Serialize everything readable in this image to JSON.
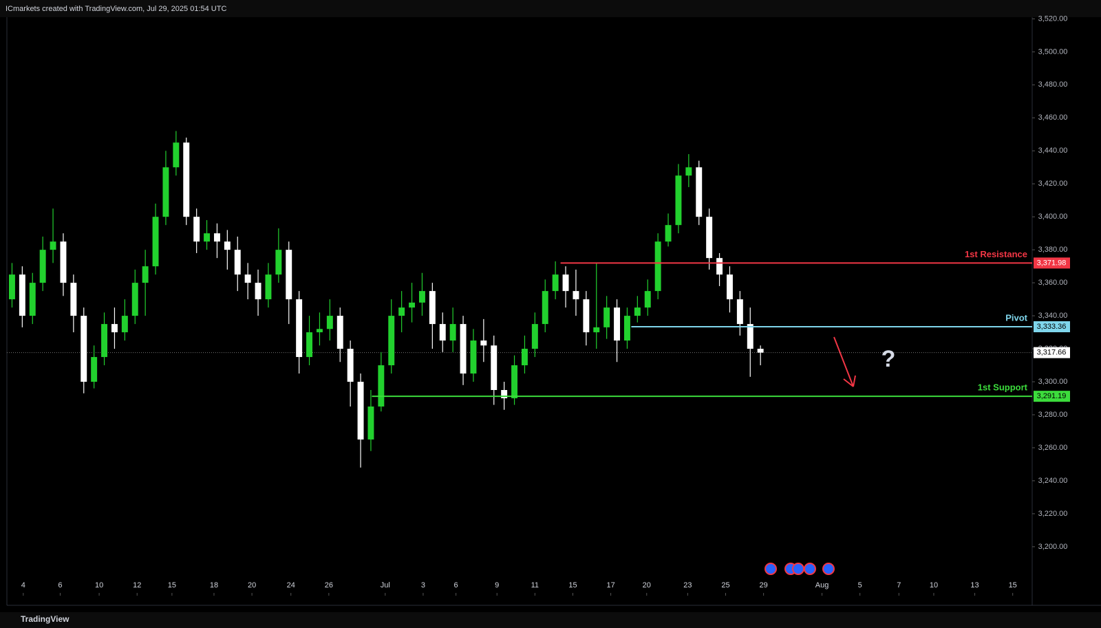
{
  "header": "ICmarkets created with TradingView.com, Jul 29, 2025 01:54 UTC",
  "footer": "TradingView",
  "chart_data": {
    "type": "candlestick",
    "up_color": "#22d12e",
    "down_color": "#ffffff",
    "x": [
      0,
      1,
      2,
      3,
      4,
      5,
      6,
      7,
      8,
      9,
      10,
      11,
      12,
      13,
      14,
      15,
      16,
      17,
      18,
      19,
      20,
      21,
      22,
      23,
      24,
      25,
      26,
      27,
      28,
      29,
      30,
      31,
      32,
      33,
      34,
      35,
      36,
      37,
      38,
      39,
      40,
      41,
      42,
      43,
      44,
      45,
      46,
      47,
      48,
      49,
      50,
      51,
      52,
      53,
      54,
      55,
      56,
      57,
      58,
      59,
      60,
      61,
      62,
      63,
      64,
      65,
      66,
      67,
      68,
      69,
      70,
      71,
      72,
      73
    ],
    "open": [
      3350,
      3365,
      3340,
      3360,
      3380,
      3385,
      3360,
      3340,
      3300,
      3315,
      3335,
      3330,
      3340,
      3360,
      3370,
      3400,
      3430,
      3445,
      3400,
      3385,
      3390,
      3385,
      3380,
      3365,
      3360,
      3350,
      3365,
      3380,
      3350,
      3315,
      3330,
      3332,
      3340,
      3320,
      3300,
      3265,
      3285,
      3310,
      3340,
      3345,
      3348,
      3355,
      3335,
      3325,
      3335,
      3305,
      3325,
      3322,
      3295,
      3290,
      3310,
      3320,
      3335,
      3355,
      3365,
      3355,
      3350,
      3330,
      3333,
      3345,
      3325,
      3340,
      3345,
      3355,
      3385,
      3395,
      3425,
      3430,
      3400,
      3375,
      3365,
      3350,
      3335,
      3320
    ],
    "high": [
      3372,
      3370,
      3366,
      3388,
      3405,
      3390,
      3365,
      3345,
      3322,
      3342,
      3345,
      3350,
      3368,
      3380,
      3408,
      3440,
      3452,
      3448,
      3405,
      3398,
      3396,
      3392,
      3388,
      3372,
      3368,
      3372,
      3393,
      3385,
      3355,
      3340,
      3342,
      3350,
      3345,
      3325,
      3305,
      3295,
      3318,
      3350,
      3355,
      3360,
      3366,
      3360,
      3342,
      3345,
      3340,
      3332,
      3338,
      3328,
      3300,
      3316,
      3328,
      3342,
      3362,
      3373,
      3370,
      3368,
      3355,
      3372,
      3352,
      3350,
      3345,
      3352,
      3362,
      3390,
      3402,
      3432,
      3438,
      3434,
      3405,
      3378,
      3370,
      3355,
      3345,
      3322
    ],
    "low": [
      3345,
      3333,
      3335,
      3355,
      3372,
      3352,
      3330,
      3293,
      3296,
      3310,
      3320,
      3325,
      3335,
      3340,
      3365,
      3395,
      3425,
      3395,
      3378,
      3380,
      3375,
      3368,
      3355,
      3350,
      3340,
      3345,
      3360,
      3335,
      3305,
      3310,
      3322,
      3325,
      3312,
      3285,
      3248,
      3258,
      3282,
      3305,
      3330,
      3336,
      3340,
      3320,
      3318,
      3318,
      3298,
      3300,
      3312,
      3286,
      3283,
      3286,
      3305,
      3315,
      3330,
      3350,
      3345,
      3340,
      3322,
      3320,
      3326,
      3312,
      3320,
      3336,
      3340,
      3350,
      3382,
      3390,
      3418,
      3395,
      3368,
      3358,
      3342,
      3328,
      3303,
      3310
    ],
    "close": [
      3365,
      3340,
      3360,
      3380,
      3385,
      3360,
      3340,
      3300,
      3315,
      3335,
      3330,
      3340,
      3360,
      3370,
      3400,
      3430,
      3445,
      3400,
      3385,
      3390,
      3385,
      3380,
      3365,
      3360,
      3350,
      3365,
      3380,
      3350,
      3315,
      3330,
      3332,
      3340,
      3320,
      3300,
      3265,
      3285,
      3310,
      3340,
      3345,
      3348,
      3355,
      3335,
      3325,
      3335,
      3305,
      3325,
      3322,
      3295,
      3290,
      3310,
      3320,
      3335,
      3355,
      3365,
      3355,
      3350,
      3330,
      3333,
      3345,
      3325,
      3340,
      3345,
      3355,
      3385,
      3395,
      3425,
      3430,
      3400,
      3375,
      3365,
      3350,
      3335,
      3320,
      3317.66
    ],
    "xlim": [
      -0.5,
      99.5
    ],
    "xticks": [
      {
        "value": 1.1,
        "label": "4"
      },
      {
        "value": 4.7,
        "label": "6"
      },
      {
        "value": 8.5,
        "label": "10"
      },
      {
        "value": 12.2,
        "label": "12"
      },
      {
        "value": 15.6,
        "label": "15"
      },
      {
        "value": 19.7,
        "label": "18"
      },
      {
        "value": 23.4,
        "label": "20"
      },
      {
        "value": 27.2,
        "label": "24"
      },
      {
        "value": 30.9,
        "label": "26"
      },
      {
        "value": 36.4,
        "label": "Jul"
      },
      {
        "value": 40.1,
        "label": "3"
      },
      {
        "value": 43.3,
        "label": "6"
      },
      {
        "value": 47.3,
        "label": "9"
      },
      {
        "value": 51.0,
        "label": "11"
      },
      {
        "value": 54.7,
        "label": "15"
      },
      {
        "value": 58.4,
        "label": "17"
      },
      {
        "value": 61.9,
        "label": "20"
      },
      {
        "value": 65.9,
        "label": "23"
      },
      {
        "value": 69.6,
        "label": "25"
      },
      {
        "value": 73.3,
        "label": "29"
      },
      {
        "value": 79.0,
        "label": "Aug"
      },
      {
        "value": 82.7,
        "label": "5"
      },
      {
        "value": 86.5,
        "label": "7"
      },
      {
        "value": 89.9,
        "label": "10"
      },
      {
        "value": 93.9,
        "label": "13"
      },
      {
        "value": 97.6,
        "label": "15"
      }
    ],
    "ylim": [
      3172,
      3521
    ],
    "yticks": [
      {
        "value": 3200,
        "label": "3,200.00"
      },
      {
        "value": 3220,
        "label": "3,220.00"
      },
      {
        "value": 3240,
        "label": "3,240.00"
      },
      {
        "value": 3260,
        "label": "3,260.00"
      },
      {
        "value": 3280,
        "label": "3,280.00"
      },
      {
        "value": 3300,
        "label": "3,300.00"
      },
      {
        "value": 3320,
        "label": "3,320.00"
      },
      {
        "value": 3340,
        "label": "3,340.00"
      },
      {
        "value": 3360,
        "label": "3,360.00"
      },
      {
        "value": 3380,
        "label": "3,380.00"
      },
      {
        "value": 3400,
        "label": "3,400.00"
      },
      {
        "value": 3420,
        "label": "3,420.00"
      },
      {
        "value": 3440,
        "label": "3,440.00"
      },
      {
        "value": 3460,
        "label": "3,460.00"
      },
      {
        "value": 3480,
        "label": "3,480.00"
      },
      {
        "value": 3500,
        "label": "3,500.00"
      },
      {
        "value": 3520,
        "label": "3,520.00"
      }
    ],
    "levels": [
      {
        "name": "1st Resistance",
        "value": 3371.98,
        "value_label": "3,371.98",
        "start": 53.5,
        "color": "#f23645"
      },
      {
        "name": "Pivot",
        "value": 3333.36,
        "value_label": "3,333.36",
        "start": 60.4,
        "color": "#7fd6ec"
      },
      {
        "name": "1st Support",
        "value": 3291.19,
        "value_label": "3,291.19",
        "start": 35.1,
        "color": "#3cdc3c"
      }
    ],
    "last_price": {
      "value": 3317.66,
      "label": "3,317.66"
    },
    "annotation": "?"
  }
}
